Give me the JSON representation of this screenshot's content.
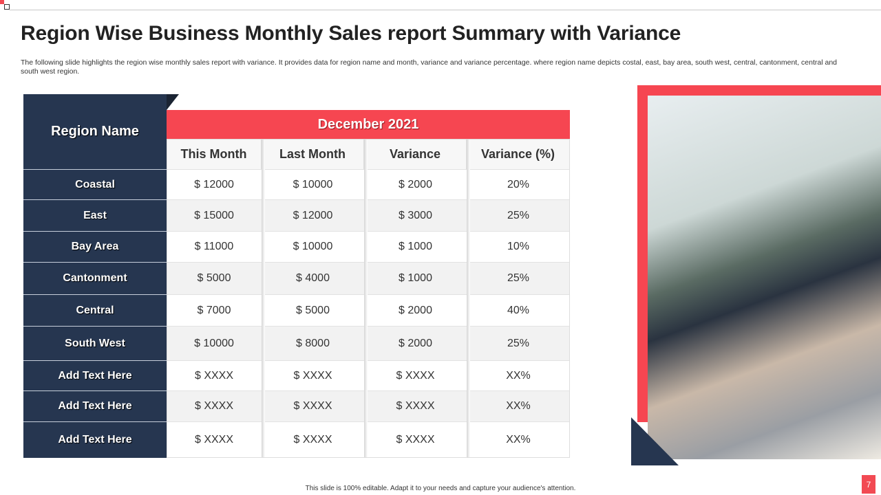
{
  "title": "Region Wise Business Monthly Sales report Summary with Variance",
  "description": "The following slide highlights the region wise monthly sales report with variance. It provides data for region name and month, variance and variance percentage. where region name depicts costal, east, bay area, south west, central, cantonment, central and south west region.",
  "table": {
    "region_header": "Region Name",
    "period": "December 2021",
    "columns": [
      "This Month",
      "Last Month",
      "Variance",
      "Variance (%)"
    ],
    "rows": [
      {
        "region": "Coastal",
        "values": [
          "$ 12000",
          "$ 10000",
          "$ 2000",
          "20%"
        ]
      },
      {
        "region": "East",
        "values": [
          "$ 15000",
          "$ 12000",
          "$ 3000",
          "25%"
        ]
      },
      {
        "region": "Bay Area",
        "values": [
          "$ 11000",
          "$ 10000",
          "$ 1000",
          "10%"
        ]
      },
      {
        "region": "Cantonment",
        "values": [
          "$ 5000",
          "$ 4000",
          "$ 1000",
          "25%"
        ]
      },
      {
        "region": "Central",
        "values": [
          "$ 7000",
          "$ 5000",
          "$ 2000",
          "40%"
        ]
      },
      {
        "region": "South West",
        "values": [
          "$ 10000",
          "$ 8000",
          "$ 2000",
          "25%"
        ]
      },
      {
        "region": "Add  Text Here",
        "values": [
          "$ XXXX",
          "$ XXXX",
          "$ XXXX",
          "XX%"
        ]
      },
      {
        "region": "Add  Text Here",
        "values": [
          "$ XXXX",
          "$ XXXX",
          "$ XXXX",
          "XX%"
        ]
      },
      {
        "region": "Add  Text Here",
        "values": [
          "$ XXXX",
          "$ XXXX",
          "$ XXXX",
          "XX%"
        ]
      }
    ]
  },
  "footer": "This slide is 100% editable.  Adapt it to your needs and capture your audience's attention.",
  "page_number": "7",
  "colors": {
    "accent": "#f64651",
    "navy": "#263650"
  }
}
